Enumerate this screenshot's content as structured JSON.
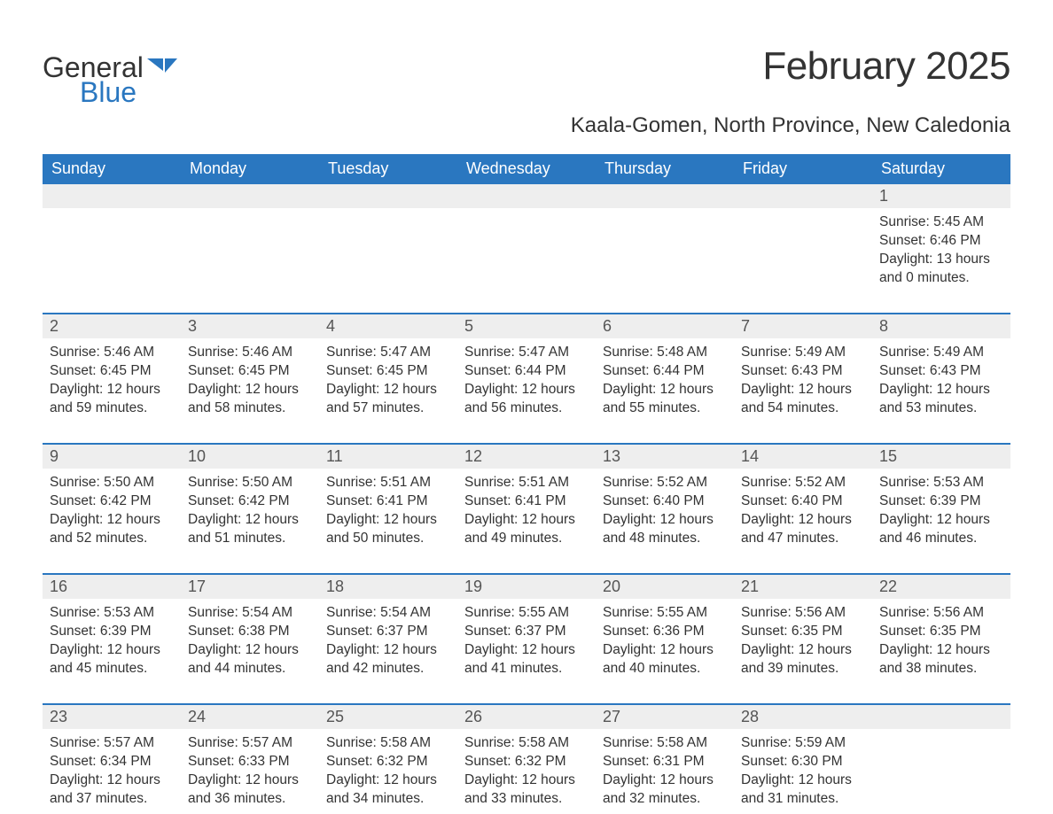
{
  "brand": {
    "word1": "General",
    "word2": "Blue",
    "logo_color": "#2a77c0"
  },
  "title": "February 2025",
  "location": "Kaala-Gomen, North Province, New Caledonia",
  "colors": {
    "header_bg": "#2a77c0",
    "header_text": "#ffffff",
    "daynum_bg": "#eeeeee",
    "rule": "#2a77c0",
    "body_text": "#333333"
  },
  "weekdays": [
    "Sunday",
    "Monday",
    "Tuesday",
    "Wednesday",
    "Thursday",
    "Friday",
    "Saturday"
  ],
  "weeks": [
    [
      null,
      null,
      null,
      null,
      null,
      null,
      {
        "n": "1",
        "sr": "5:45 AM",
        "ss": "6:46 PM",
        "dl": "13 hours and 0 minutes."
      }
    ],
    [
      {
        "n": "2",
        "sr": "5:46 AM",
        "ss": "6:45 PM",
        "dl": "12 hours and 59 minutes."
      },
      {
        "n": "3",
        "sr": "5:46 AM",
        "ss": "6:45 PM",
        "dl": "12 hours and 58 minutes."
      },
      {
        "n": "4",
        "sr": "5:47 AM",
        "ss": "6:45 PM",
        "dl": "12 hours and 57 minutes."
      },
      {
        "n": "5",
        "sr": "5:47 AM",
        "ss": "6:44 PM",
        "dl": "12 hours and 56 minutes."
      },
      {
        "n": "6",
        "sr": "5:48 AM",
        "ss": "6:44 PM",
        "dl": "12 hours and 55 minutes."
      },
      {
        "n": "7",
        "sr": "5:49 AM",
        "ss": "6:43 PM",
        "dl": "12 hours and 54 minutes."
      },
      {
        "n": "8",
        "sr": "5:49 AM",
        "ss": "6:43 PM",
        "dl": "12 hours and 53 minutes."
      }
    ],
    [
      {
        "n": "9",
        "sr": "5:50 AM",
        "ss": "6:42 PM",
        "dl": "12 hours and 52 minutes."
      },
      {
        "n": "10",
        "sr": "5:50 AM",
        "ss": "6:42 PM",
        "dl": "12 hours and 51 minutes."
      },
      {
        "n": "11",
        "sr": "5:51 AM",
        "ss": "6:41 PM",
        "dl": "12 hours and 50 minutes."
      },
      {
        "n": "12",
        "sr": "5:51 AM",
        "ss": "6:41 PM",
        "dl": "12 hours and 49 minutes."
      },
      {
        "n": "13",
        "sr": "5:52 AM",
        "ss": "6:40 PM",
        "dl": "12 hours and 48 minutes."
      },
      {
        "n": "14",
        "sr": "5:52 AM",
        "ss": "6:40 PM",
        "dl": "12 hours and 47 minutes."
      },
      {
        "n": "15",
        "sr": "5:53 AM",
        "ss": "6:39 PM",
        "dl": "12 hours and 46 minutes."
      }
    ],
    [
      {
        "n": "16",
        "sr": "5:53 AM",
        "ss": "6:39 PM",
        "dl": "12 hours and 45 minutes."
      },
      {
        "n": "17",
        "sr": "5:54 AM",
        "ss": "6:38 PM",
        "dl": "12 hours and 44 minutes."
      },
      {
        "n": "18",
        "sr": "5:54 AM",
        "ss": "6:37 PM",
        "dl": "12 hours and 42 minutes."
      },
      {
        "n": "19",
        "sr": "5:55 AM",
        "ss": "6:37 PM",
        "dl": "12 hours and 41 minutes."
      },
      {
        "n": "20",
        "sr": "5:55 AM",
        "ss": "6:36 PM",
        "dl": "12 hours and 40 minutes."
      },
      {
        "n": "21",
        "sr": "5:56 AM",
        "ss": "6:35 PM",
        "dl": "12 hours and 39 minutes."
      },
      {
        "n": "22",
        "sr": "5:56 AM",
        "ss": "6:35 PM",
        "dl": "12 hours and 38 minutes."
      }
    ],
    [
      {
        "n": "23",
        "sr": "5:57 AM",
        "ss": "6:34 PM",
        "dl": "12 hours and 37 minutes."
      },
      {
        "n": "24",
        "sr": "5:57 AM",
        "ss": "6:33 PM",
        "dl": "12 hours and 36 minutes."
      },
      {
        "n": "25",
        "sr": "5:58 AM",
        "ss": "6:32 PM",
        "dl": "12 hours and 34 minutes."
      },
      {
        "n": "26",
        "sr": "5:58 AM",
        "ss": "6:32 PM",
        "dl": "12 hours and 33 minutes."
      },
      {
        "n": "27",
        "sr": "5:58 AM",
        "ss": "6:31 PM",
        "dl": "12 hours and 32 minutes."
      },
      {
        "n": "28",
        "sr": "5:59 AM",
        "ss": "6:30 PM",
        "dl": "12 hours and 31 minutes."
      },
      null
    ]
  ],
  "labels": {
    "sunrise": "Sunrise:",
    "sunset": "Sunset:",
    "daylight": "Daylight:"
  }
}
